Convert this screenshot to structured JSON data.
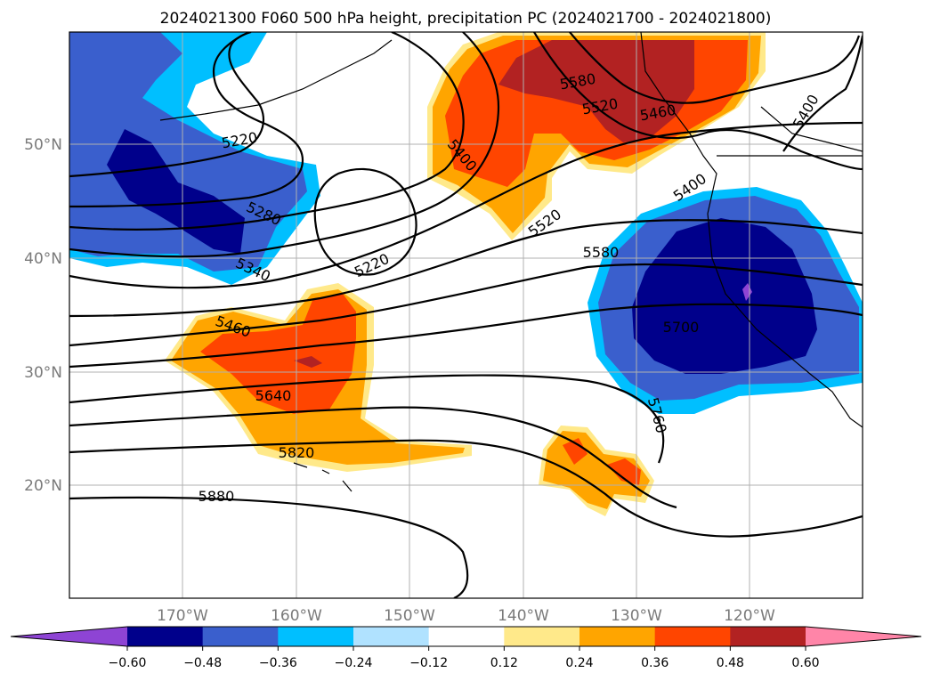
{
  "title": "2024021300 F060 500 hPa height, precipitation PC (2024021700 - 2024021800)",
  "map": {
    "lon_labels": [
      "170°W",
      "160°W",
      "150°W",
      "140°W",
      "130°W",
      "120°W"
    ],
    "lat_labels": [
      "50°N",
      "40°N",
      "30°N",
      "20°N"
    ],
    "contour_labels": [
      "5220",
      "5280",
      "5340",
      "5460",
      "5640",
      "5820",
      "5880",
      "5220",
      "5400",
      "5520",
      "5580",
      "5400",
      "5520",
      "5580",
      "5700",
      "5760",
      "5400",
      "5460"
    ]
  },
  "colorbar": {
    "tick_labels": [
      "−0.60",
      "−0.48",
      "−0.36",
      "−0.24",
      "−0.12",
      "0.12",
      "0.24",
      "0.36",
      "0.48",
      "0.60"
    ],
    "colors": [
      "#8e44d4",
      "#00008b",
      "#3a5fcd",
      "#00bfff",
      "#b0e2ff",
      "#ffffff",
      "#ffe98a",
      "#ffa500",
      "#ff4500",
      "#b22222",
      "#ff85a8"
    ]
  },
  "colors": {
    "deep_blue": "#00008b",
    "mid_blue": "#3a5fcd",
    "light_blue": "#00bfff",
    "pale_blue": "#b0e2ff",
    "pale_yellow": "#ffe98a",
    "orange": "#ffa500",
    "red_orange": "#ff4500",
    "dark_red": "#b22222",
    "purple": "#8e44d4"
  }
}
